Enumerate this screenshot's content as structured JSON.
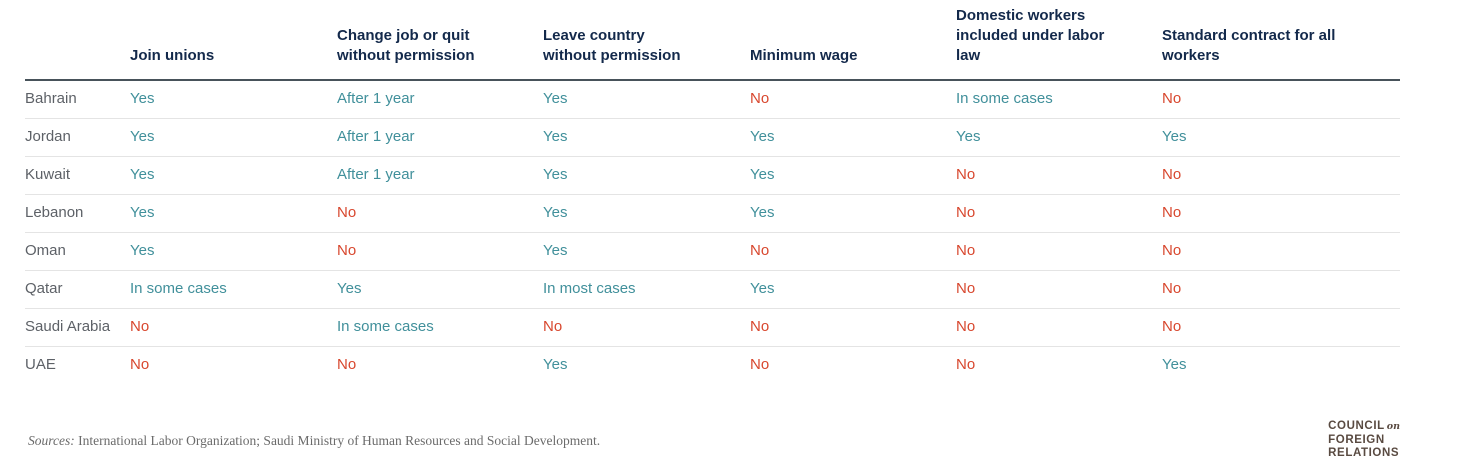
{
  "chart_data": {
    "type": "table",
    "columns": [
      "Join unions",
      "Change job or quit without permission",
      "Leave country without permission",
      "Minimum wage",
      "Domestic workers included under labor law",
      "Standard contract for all workers"
    ],
    "rows": [
      {
        "country": "Bahrain",
        "values": [
          "Yes",
          "After 1 year",
          "Yes",
          "No",
          "In some cases",
          "No"
        ]
      },
      {
        "country": "Jordan",
        "values": [
          "Yes",
          "After 1 year",
          "Yes",
          "Yes",
          "Yes",
          "Yes"
        ]
      },
      {
        "country": "Kuwait",
        "values": [
          "Yes",
          "After 1 year",
          "Yes",
          "Yes",
          "No",
          "No"
        ]
      },
      {
        "country": "Lebanon",
        "values": [
          "Yes",
          "No",
          "Yes",
          "Yes",
          "No",
          "No"
        ]
      },
      {
        "country": "Oman",
        "values": [
          "Yes",
          "No",
          "Yes",
          "No",
          "No",
          "No"
        ]
      },
      {
        "country": "Qatar",
        "values": [
          "In some cases",
          "Yes",
          "In most cases",
          "Yes",
          "No",
          "No"
        ]
      },
      {
        "country": "Saudi Arabia",
        "values": [
          "No",
          "In some cases",
          "No",
          "No",
          "No",
          "No"
        ]
      },
      {
        "country": "UAE",
        "values": [
          "No",
          "No",
          "Yes",
          "No",
          "No",
          "Yes"
        ]
      }
    ],
    "legend_semantics": {
      "positive_values": [
        "Yes",
        "After 1 year",
        "In some cases",
        "In most cases"
      ],
      "negative_values": [
        "No"
      ]
    }
  },
  "footer": {
    "sources_label": "Sources:",
    "sources_text": " International Labor Organization; Saudi Ministry of Human Resources and Social Development."
  },
  "logo": {
    "line1": "COUNCIL",
    "conjunction": "on",
    "line2": "FOREIGN",
    "line3": "RELATIONS"
  },
  "colors": {
    "positive_text": "#41909b",
    "negative_text": "#d8472e",
    "header_text": "#13294b",
    "country_text": "#5d6167",
    "header_rule": "#47525a",
    "row_rule": "#e4e4e4",
    "sources_text": "#6b6b6b",
    "logo_text": "#594a41",
    "background": "#ffffff"
  }
}
